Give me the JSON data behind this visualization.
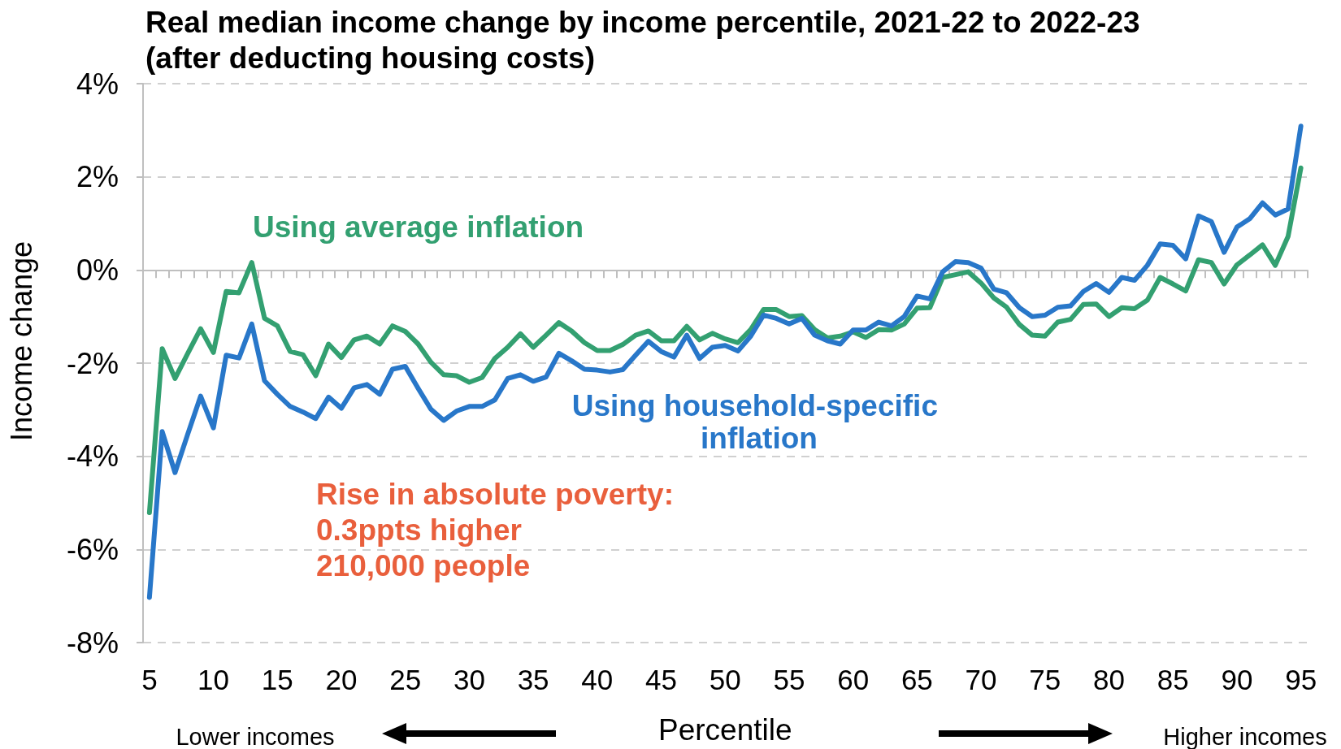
{
  "chart_data": {
    "type": "line",
    "title": "Real median income change by income percentile, 2021-22 to 2022-23",
    "subtitle": "(after deducting housing costs)",
    "xlabel": "Percentile",
    "ylabel": "Income change",
    "annotations": [
      "Rise in absolute poverty:\n0.3ppts higher\n210,000 people",
      "Lower incomes",
      "Higher incomes"
    ],
    "categories": [
      "5",
      null,
      null,
      null,
      null,
      "10",
      null,
      null,
      null,
      null,
      "15",
      null,
      null,
      null,
      null,
      "20",
      null,
      null,
      null,
      null,
      "25",
      null,
      null,
      null,
      null,
      "30",
      null,
      null,
      null,
      null,
      "35",
      null,
      null,
      null,
      null,
      "40",
      null,
      null,
      null,
      null,
      "45",
      null,
      null,
      null,
      null,
      "50",
      null,
      null,
      null,
      null,
      "55",
      null,
      null,
      null,
      null,
      "60",
      null,
      null,
      null,
      null,
      "65",
      null,
      null,
      null,
      null,
      "70",
      null,
      null,
      null,
      null,
      "75",
      null,
      null,
      null,
      null,
      "80",
      null,
      null,
      null,
      null,
      "85",
      null,
      null,
      null,
      null,
      "90",
      null,
      null,
      null,
      null,
      "95"
    ],
    "series": [
      {
        "name": "Using average inflation",
        "color": "#33a071",
        "values": [
          -5.21,
          -1.69,
          -2.33,
          -1.79,
          -1.26,
          -1.77,
          -0.46,
          -0.49,
          0.16,
          -1.04,
          -1.2,
          -1.75,
          -1.82,
          -2.27,
          -1.59,
          -1.88,
          -1.5,
          -1.42,
          -1.59,
          -1.2,
          -1.32,
          -1.59,
          -1.98,
          -2.25,
          -2.27,
          -2.41,
          -2.31,
          -1.9,
          -1.66,
          -1.37,
          -1.66,
          -1.4,
          -1.13,
          -1.31,
          -1.56,
          -1.73,
          -1.73,
          -1.6,
          -1.4,
          -1.31,
          -1.52,
          -1.52,
          -1.21,
          -1.5,
          -1.36,
          -1.48,
          -1.56,
          -1.28,
          -0.85,
          -0.85,
          -1.0,
          -0.98,
          -1.28,
          -1.46,
          -1.42,
          -1.33,
          -1.45,
          -1.28,
          -1.29,
          -1.16,
          -0.82,
          -0.81,
          -0.16,
          -0.1,
          -0.04,
          -0.28,
          -0.6,
          -0.8,
          -1.17,
          -1.4,
          -1.42,
          -1.12,
          -1.06,
          -0.74,
          -0.73,
          -1.0,
          -0.81,
          -0.83,
          -0.65,
          -0.16,
          -0.3,
          -0.45,
          0.22,
          0.16,
          -0.3,
          0.11,
          0.32,
          0.54,
          0.1,
          0.72,
          2.19
        ]
      },
      {
        "name": "Using household-specific inflation",
        "color": "#2877c9",
        "values": [
          -7.03,
          -3.47,
          -4.35,
          -3.52,
          -2.71,
          -3.39,
          -1.83,
          -1.89,
          -1.16,
          -2.38,
          -2.67,
          -2.93,
          -3.05,
          -3.19,
          -2.73,
          -2.97,
          -2.53,
          -2.46,
          -2.67,
          -2.13,
          -2.07,
          -2.54,
          -2.99,
          -3.23,
          -3.03,
          -2.93,
          -2.93,
          -2.79,
          -2.33,
          -2.25,
          -2.39,
          -2.3,
          -1.79,
          -1.95,
          -2.13,
          -2.15,
          -2.19,
          -2.14,
          -1.83,
          -1.53,
          -1.75,
          -1.87,
          -1.4,
          -1.9,
          -1.66,
          -1.62,
          -1.74,
          -1.42,
          -0.97,
          -1.04,
          -1.16,
          -1.04,
          -1.4,
          -1.52,
          -1.59,
          -1.29,
          -1.29,
          -1.12,
          -1.2,
          -1.0,
          -0.56,
          -0.62,
          -0.04,
          0.18,
          0.16,
          0.04,
          -0.41,
          -0.49,
          -0.81,
          -1.0,
          -0.97,
          -0.8,
          -0.77,
          -0.46,
          -0.29,
          -0.48,
          -0.16,
          -0.22,
          0.1,
          0.56,
          0.53,
          0.24,
          1.16,
          1.04,
          0.38,
          0.92,
          1.1,
          1.44,
          1.18,
          1.31,
          3.09
        ]
      }
    ],
    "ylim": [
      -8,
      4
    ],
    "yticks": [
      {
        "value": -8,
        "label": "-8%"
      },
      {
        "value": -6,
        "label": "-6%"
      },
      {
        "value": -4,
        "label": "-4%"
      },
      {
        "value": -2,
        "label": "-2%"
      },
      {
        "value": 0,
        "label": "0%"
      },
      {
        "value": 2,
        "label": "2%"
      },
      {
        "value": 4,
        "label": "4%"
      }
    ],
    "grid": "y",
    "marker": "none",
    "line_style": "solid"
  }
}
